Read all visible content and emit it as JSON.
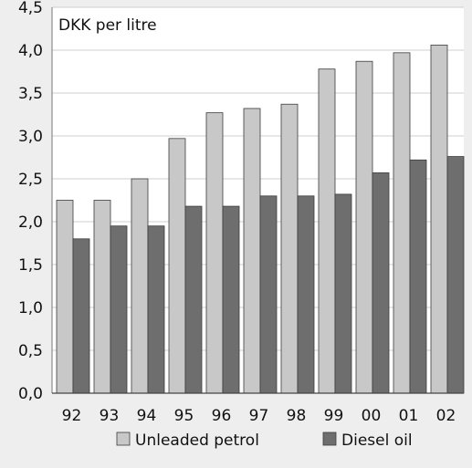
{
  "chart_data": {
    "type": "bar",
    "unit_label": "DKK per litre",
    "categories": [
      "92",
      "93",
      "94",
      "95",
      "96",
      "97",
      "98",
      "99",
      "00",
      "01",
      "02"
    ],
    "series": [
      {
        "name": "Unleaded petrol",
        "color": "#c8c8c8",
        "values": [
          2.25,
          2.25,
          2.5,
          2.97,
          3.27,
          3.32,
          3.37,
          3.78,
          3.87,
          3.97,
          4.06
        ]
      },
      {
        "name": "Diesel oil",
        "color": "#6e6e6e",
        "values": [
          1.8,
          1.95,
          1.95,
          2.18,
          2.18,
          2.3,
          2.3,
          2.32,
          2.57,
          2.72,
          2.76
        ]
      }
    ],
    "ylim": [
      0,
      4.5
    ],
    "yticks": [
      "0,0",
      "0,5",
      "1,0",
      "1,5",
      "2,0",
      "2,5",
      "3,0",
      "3,5",
      "4,0",
      "4,5"
    ],
    "grid": true,
    "legend_position": "bottom"
  },
  "colors": {
    "background": "#eeeeee",
    "plot_background": "#ffffff",
    "gridline": "#cfcfcf",
    "bar_border": "#3c3c3c"
  }
}
